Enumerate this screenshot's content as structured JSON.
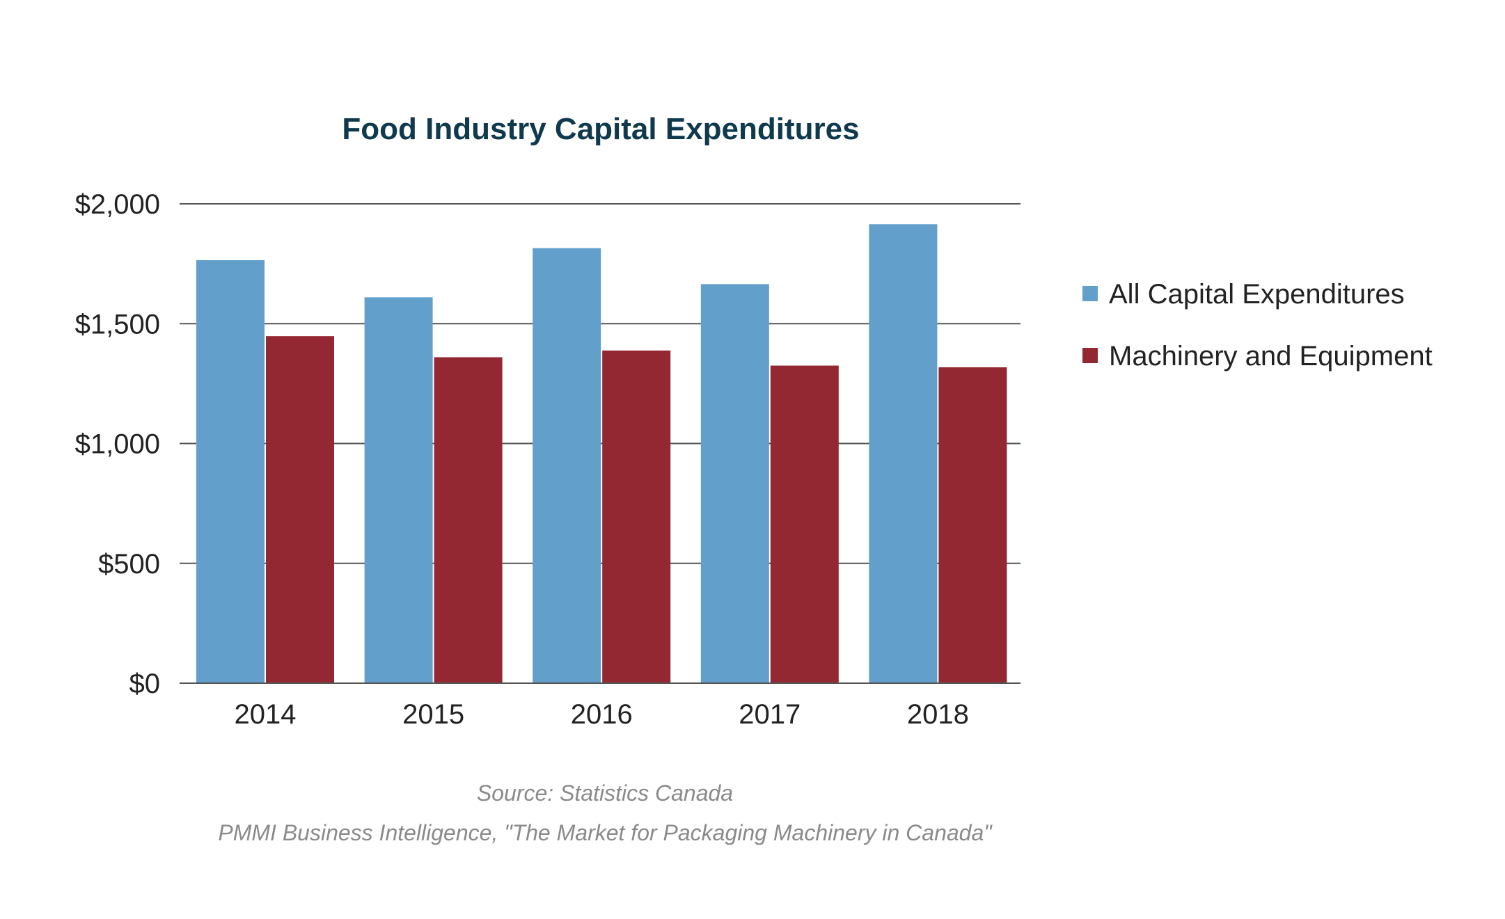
{
  "chart_data": {
    "type": "bar",
    "title": "Food Industry Capital Expenditures",
    "categories": [
      "2014",
      "2015",
      "2016",
      "2017",
      "2018"
    ],
    "series": [
      {
        "name": "All Capital Expenditures",
        "color": "#629fcb",
        "values": [
          1765,
          1610,
          1815,
          1665,
          1915
        ]
      },
      {
        "name": "Machinery and Equipment",
        "color": "#932833",
        "values": [
          1448,
          1360,
          1388,
          1325,
          1318
        ]
      }
    ],
    "ylim": [
      0,
      2000
    ],
    "yticks": [
      0,
      500,
      1000,
      1500,
      2000
    ],
    "ytick_labels": [
      "$0",
      "$500",
      "$1,000",
      "$1,500",
      "$2,000"
    ],
    "grid": true,
    "legend_position": "right"
  },
  "source": {
    "line1": "Source: Statistics Canada",
    "line2": "PMMI Business Intelligence, \"The Market for Packaging Machinery in Canada\""
  }
}
